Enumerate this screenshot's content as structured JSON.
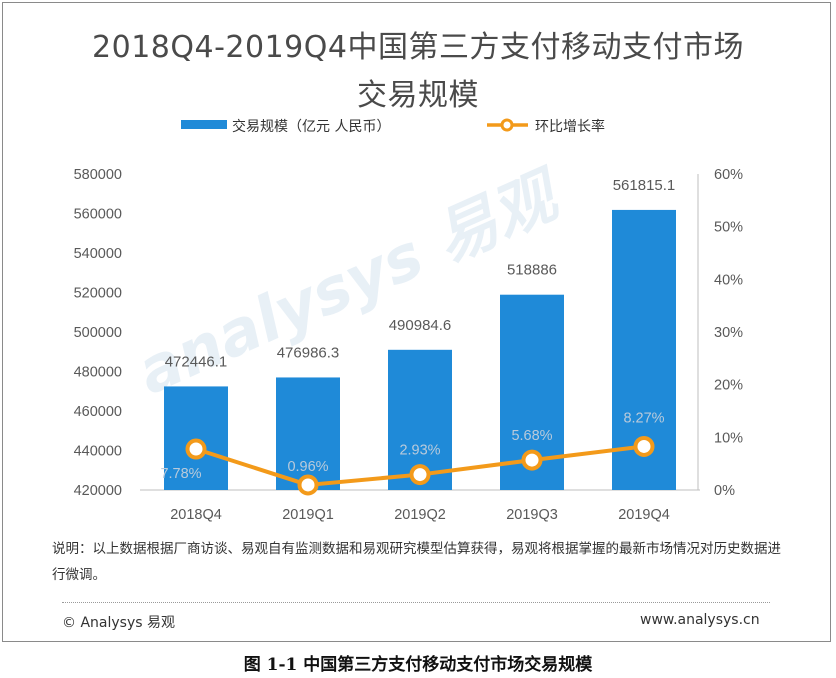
{
  "title_line1": "2018Q4-2019Q4中国第三方支付移动支付市场",
  "title_line2": "交易规模",
  "legend": {
    "bar_label": "交易规模（亿元 人民币）",
    "line_label": "环比增长率"
  },
  "colors": {
    "bar": "#1f8ad8",
    "line": "#f39a1a",
    "text": "#595959"
  },
  "chart_data": {
    "type": "bar",
    "categories": [
      "2018Q4",
      "2019Q1",
      "2019Q2",
      "2019Q3",
      "2019Q4"
    ],
    "series": [
      {
        "name": "交易规模（亿元 人民币）",
        "type": "bar",
        "axis": "left",
        "values": [
          472446.1,
          476986.3,
          490984.6,
          518886,
          561815.1
        ],
        "labels": [
          "472446.1",
          "476986.3",
          "490984.6",
          "518886",
          "561815.1"
        ]
      },
      {
        "name": "环比增长率",
        "type": "line",
        "axis": "right",
        "values": [
          7.78,
          0.96,
          2.93,
          5.68,
          8.27
        ],
        "labels": [
          "7.78%",
          "0.96%",
          "2.93%",
          "5.68%",
          "8.27%"
        ]
      }
    ],
    "y_left": {
      "range": [
        420000,
        580000
      ],
      "ticks": [
        "420000",
        "440000",
        "460000",
        "480000",
        "500000",
        "520000",
        "540000",
        "560000",
        "580000"
      ]
    },
    "y_right": {
      "range": [
        0,
        60
      ],
      "ticks": [
        "0%",
        "10%",
        "20%",
        "30%",
        "40%",
        "50%",
        "60%"
      ]
    },
    "grid": false,
    "legend_position": "top"
  },
  "note": "说明：以上数据根据厂商访谈、易观自有监测数据和易观研究模型估算获得，易观将根据掌握的最新市场情况对历史数据进行微调。",
  "footer": {
    "left": "© Analysys 易观",
    "right": "www.analysys.cn"
  },
  "caption": "图 1-1  中国第三方支付移动支付市场交易规模"
}
